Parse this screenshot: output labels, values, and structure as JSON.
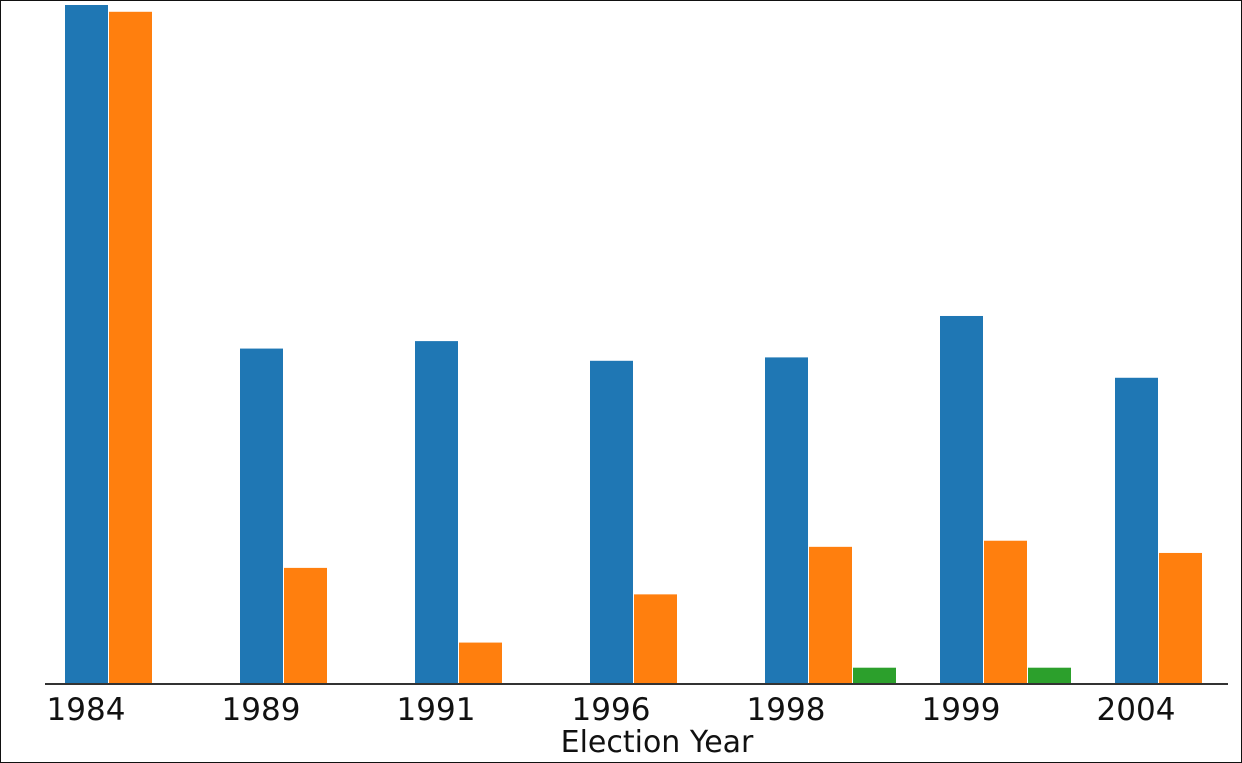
{
  "chart_data": {
    "type": "bar",
    "title": "",
    "xlabel": "Election Year",
    "ylabel": "",
    "categories": [
      "1984",
      "1989",
      "1991",
      "1996",
      "1998",
      "1999",
      "2004"
    ],
    "series": [
      {
        "values": [
          100,
          49.4,
          50.5,
          47.6,
          48.1,
          54.2,
          45.1
        ],
        "color": "#1f77b4"
      },
      {
        "values": [
          99.0,
          17.1,
          6.1,
          13.2,
          20.2,
          21.1,
          19.3
        ],
        "color": "#ff7f0e"
      },
      {
        "values": [
          0,
          0,
          0,
          0,
          2.4,
          2.4,
          0
        ],
        "color": "#2ca02c"
      }
    ],
    "ylim": [
      0,
      100
    ],
    "grid": false,
    "legend": "none"
  }
}
